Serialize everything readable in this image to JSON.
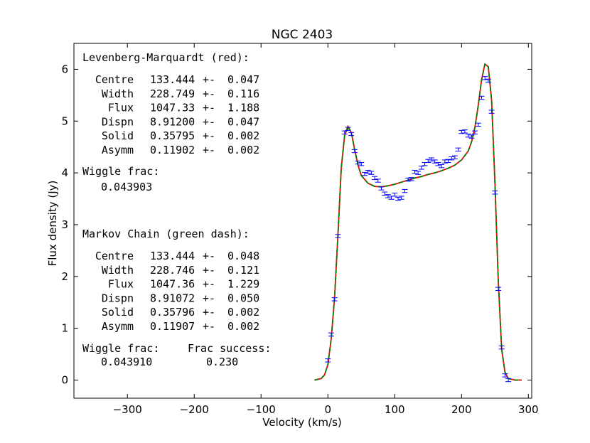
{
  "chart_data": {
    "type": "line",
    "title": "NGC 2403",
    "xlabel": "Velocity (km/s)",
    "ylabel": "Flux density (Jy)",
    "xlim": [
      -380,
      305
    ],
    "ylim": [
      -0.35,
      6.5
    ],
    "xticks": [
      -300,
      -200,
      -100,
      0,
      100,
      200,
      300
    ],
    "xtick_labels": [
      "−300",
      "−200",
      "−100",
      "0",
      "100",
      "200",
      "300"
    ],
    "yticks": [
      0,
      1,
      2,
      3,
      4,
      5,
      6
    ],
    "ytick_labels": [
      "0",
      "1",
      "2",
      "3",
      "4",
      "5",
      "6"
    ],
    "grid": false,
    "colors": {
      "fit_red": "#ff0000",
      "fit_green": "#008000",
      "data": "#0000ff",
      "frame": "#000000"
    },
    "series": [
      {
        "name": "Levenberg-Marquardt (red)",
        "style": "solid",
        "x": [
          -20,
          -10,
          -5,
          0,
          5,
          10,
          15,
          20,
          25,
          30,
          35,
          40,
          45,
          50,
          60,
          70,
          80,
          90,
          100,
          110,
          120,
          130,
          140,
          150,
          160,
          170,
          180,
          190,
          200,
          210,
          215,
          220,
          225,
          230,
          235,
          240,
          245,
          250,
          255,
          260,
          265,
          270,
          280,
          290
        ],
        "y": [
          0.0,
          0.03,
          0.1,
          0.3,
          0.8,
          1.6,
          2.8,
          4.1,
          4.72,
          4.9,
          4.78,
          4.45,
          4.15,
          3.95,
          3.8,
          3.74,
          3.73,
          3.75,
          3.78,
          3.82,
          3.86,
          3.9,
          3.93,
          3.97,
          4.0,
          4.04,
          4.09,
          4.15,
          4.25,
          4.42,
          4.6,
          4.88,
          5.3,
          5.8,
          6.1,
          6.05,
          5.4,
          3.8,
          1.9,
          0.6,
          0.15,
          0.03,
          0.0,
          0.0
        ]
      },
      {
        "name": "Markov Chain (green dash)",
        "style": "dashed",
        "x": [
          -20,
          -10,
          -5,
          0,
          5,
          10,
          15,
          20,
          25,
          30,
          35,
          40,
          45,
          50,
          60,
          70,
          80,
          90,
          100,
          110,
          120,
          130,
          140,
          150,
          160,
          170,
          180,
          190,
          200,
          210,
          215,
          220,
          225,
          230,
          235,
          240,
          245,
          250,
          255,
          260,
          265,
          270,
          280,
          290
        ],
        "y": [
          0.0,
          0.03,
          0.1,
          0.3,
          0.8,
          1.6,
          2.8,
          4.1,
          4.72,
          4.9,
          4.78,
          4.45,
          4.15,
          3.95,
          3.8,
          3.74,
          3.73,
          3.75,
          3.78,
          3.82,
          3.86,
          3.9,
          3.93,
          3.97,
          4.0,
          4.04,
          4.09,
          4.15,
          4.25,
          4.42,
          4.6,
          4.88,
          5.3,
          5.8,
          6.1,
          6.05,
          5.4,
          3.8,
          1.9,
          0.6,
          0.15,
          0.03,
          0.0,
          0.0
        ]
      },
      {
        "style": "errorbar points",
        "x": [
          0,
          5,
          10,
          15,
          25,
          30,
          35,
          40,
          45,
          50,
          55,
          60,
          65,
          70,
          75,
          80,
          85,
          90,
          95,
          100,
          105,
          110,
          115,
          120,
          125,
          130,
          135,
          140,
          145,
          150,
          155,
          160,
          165,
          170,
          175,
          180,
          185,
          190,
          195,
          200,
          205,
          210,
          215,
          220,
          225,
          230,
          235,
          240,
          245,
          250,
          255,
          260,
          265,
          270
        ],
        "y": [
          0.38,
          0.88,
          1.56,
          2.78,
          4.78,
          4.85,
          4.75,
          4.42,
          4.2,
          4.17,
          3.98,
          4.02,
          4.0,
          3.9,
          3.85,
          3.7,
          3.6,
          3.55,
          3.52,
          3.58,
          3.5,
          3.52,
          3.65,
          3.87,
          3.88,
          4.02,
          4.0,
          4.1,
          4.17,
          4.23,
          4.26,
          4.22,
          4.17,
          4.13,
          4.22,
          4.23,
          4.28,
          4.3,
          4.45,
          4.79,
          4.8,
          4.72,
          4.7,
          4.78,
          4.93,
          5.45,
          5.83,
          5.78,
          5.18,
          3.62,
          1.76,
          0.63,
          0.09,
          0.0
        ],
        "err": 0.03
      }
    ],
    "annotations": {
      "lm_header": "Levenberg-Marquardt (red):",
      "lm_rows": [
        {
          "name": "Centre",
          "value": "133.444",
          "pm": "+-",
          "err": "0.047"
        },
        {
          "name": "Width",
          "value": "228.749",
          "pm": "+-",
          "err": "0.116"
        },
        {
          "name": "Flux",
          "value": "1047.33",
          "pm": "+-",
          "err": "1.188"
        },
        {
          "name": "Dispn",
          "value": "8.91200",
          "pm": "+-",
          "err": "0.047"
        },
        {
          "name": "Solid",
          "value": "0.35795",
          "pm": "+-",
          "err": "0.002"
        },
        {
          "name": "Asymm",
          "value": "0.11902",
          "pm": "+-",
          "err": "0.002"
        }
      ],
      "lm_wiggle_label": "Wiggle frac:",
      "lm_wiggle_value": "0.043903",
      "mc_header": "Markov Chain (green dash):",
      "mc_rows": [
        {
          "name": "Centre",
          "value": "133.444",
          "pm": "+-",
          "err": "0.048"
        },
        {
          "name": "Width",
          "value": "228.746",
          "pm": "+-",
          "err": "0.121"
        },
        {
          "name": "Flux",
          "value": "1047.36",
          "pm": "+-",
          "err": "1.229"
        },
        {
          "name": "Dispn",
          "value": "8.91072",
          "pm": "+-",
          "err": "0.050"
        },
        {
          "name": "Solid",
          "value": "0.35796",
          "pm": "+-",
          "err": "0.002"
        },
        {
          "name": "Asymm",
          "value": "0.11907",
          "pm": "+-",
          "err": "0.002"
        }
      ],
      "mc_wiggle_label": "Wiggle frac:",
      "mc_wiggle_value": "0.043910",
      "mc_success_label": "Frac success:",
      "mc_success_value": "0.230"
    }
  }
}
